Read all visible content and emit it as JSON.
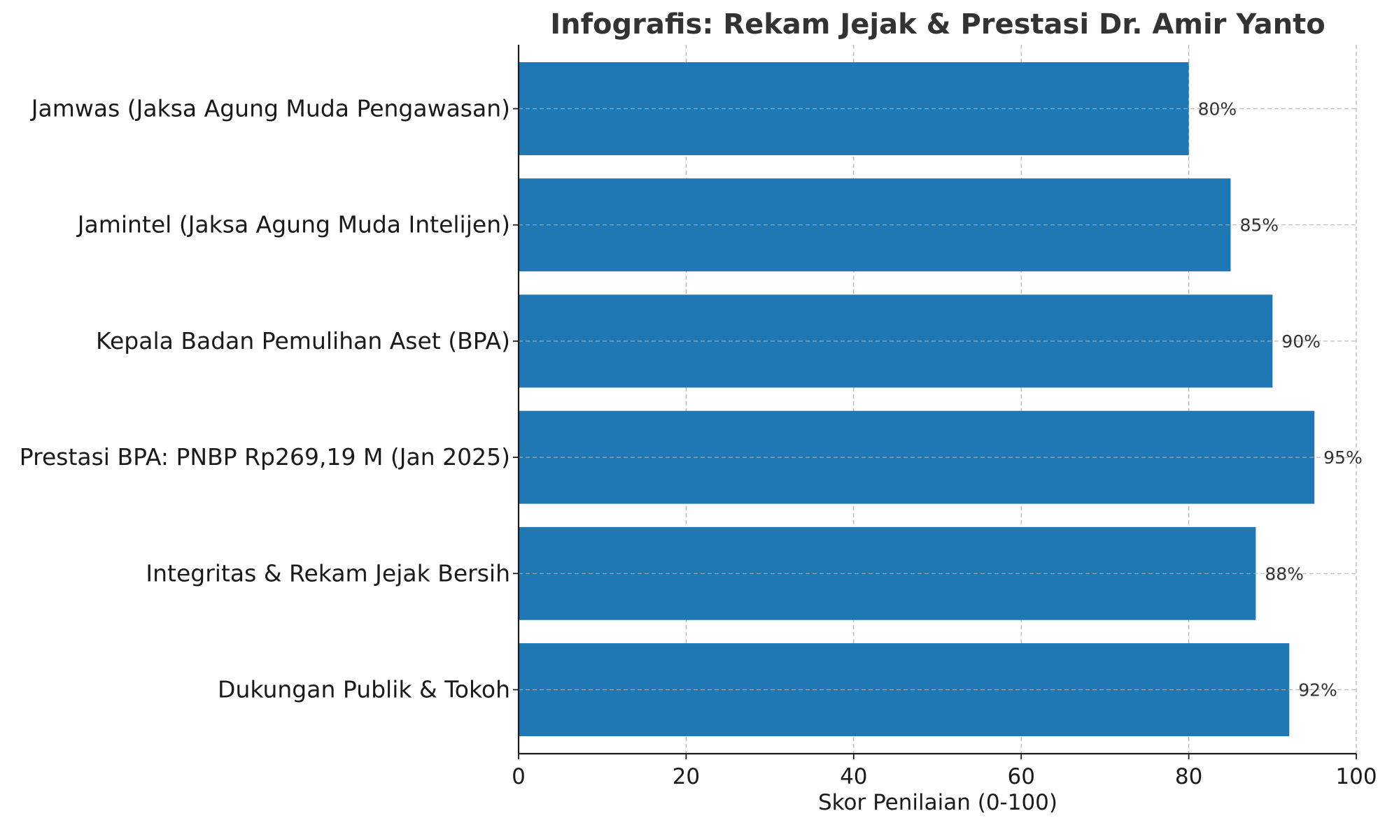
{
  "chart_data": {
    "type": "bar",
    "orientation": "horizontal",
    "title": "Infografis: Rekam Jejak & Prestasi Dr. Amir Yanto",
    "xlabel": "Skor Penilaian (0-100)",
    "ylabel": "",
    "categories": [
      "Jamwas (Jaksa Agung Muda Pengawasan)",
      "Jamintel (Jaksa Agung Muda Intelijen)",
      "Kepala Badan Pemulihan Aset (BPA)",
      "Prestasi BPA: PNBP Rp269,19 M (Jan 2025)",
      "Integritas & Rekam Jejak Bersih",
      "Dukungan Publik & Tokoh"
    ],
    "values": [
      80,
      85,
      90,
      95,
      88,
      92
    ],
    "data_labels": [
      "80%",
      "85%",
      "90%",
      "95%",
      "88%",
      "92%"
    ],
    "xlim": [
      0,
      100
    ],
    "xticks": [
      0,
      20,
      40,
      60,
      80,
      100
    ],
    "xtick_labels": [
      "0",
      "20",
      "40",
      "60",
      "80",
      "100"
    ],
    "grid": true,
    "bar_color": "#1f77b4",
    "grid_color": "#b0b0b0"
  }
}
